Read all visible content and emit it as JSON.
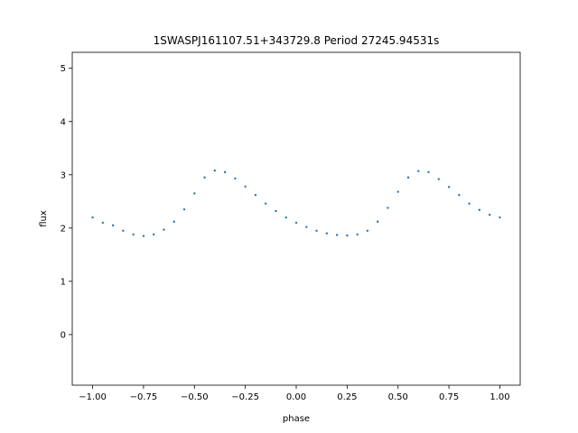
{
  "chart_data": {
    "type": "scatter",
    "title": "1SWASPJ161107.51+343729.8 Period 27245.94531s",
    "xlabel": "phase",
    "ylabel": "flux",
    "xlim": [
      -1.1,
      1.1
    ],
    "ylim": [
      -0.95,
      5.3
    ],
    "grid": false,
    "marker_color": "#1f77b4",
    "xticks": [
      {
        "value": -1.0,
        "label": "−1.00"
      },
      {
        "value": -0.75,
        "label": "−0.75"
      },
      {
        "value": -0.5,
        "label": "−0.50"
      },
      {
        "value": -0.25,
        "label": "−0.25"
      },
      {
        "value": 0.0,
        "label": "0.00"
      },
      {
        "value": 0.25,
        "label": "0.25"
      },
      {
        "value": 0.5,
        "label": "0.50"
      },
      {
        "value": 0.75,
        "label": "0.75"
      },
      {
        "value": 1.0,
        "label": "1.00"
      }
    ],
    "yticks": [
      {
        "value": 0,
        "label": "0"
      },
      {
        "value": 1,
        "label": "1"
      },
      {
        "value": 2,
        "label": "2"
      },
      {
        "value": 3,
        "label": "3"
      },
      {
        "value": 4,
        "label": "4"
      },
      {
        "value": 5,
        "label": "5"
      }
    ],
    "series": [
      {
        "x": [
          -1.0,
          -0.95,
          -0.9,
          -0.85,
          -0.8,
          -0.75,
          -0.7,
          -0.65,
          -0.6,
          -0.55,
          -0.5,
          -0.45,
          -0.4,
          -0.35,
          -0.3,
          -0.25,
          -0.2,
          -0.15,
          -0.1,
          -0.05,
          0.0,
          0.05,
          0.1,
          0.15,
          0.2,
          0.25,
          0.3,
          0.35,
          0.4,
          0.45,
          0.5,
          0.55,
          0.6,
          0.65,
          0.7,
          0.75,
          0.8,
          0.85,
          0.9,
          0.95,
          1.0
        ],
        "y": [
          2.2,
          2.1,
          2.05,
          1.95,
          1.88,
          1.85,
          1.88,
          1.97,
          2.12,
          2.35,
          2.65,
          2.95,
          3.08,
          3.05,
          2.93,
          2.78,
          2.62,
          2.46,
          2.32,
          2.2,
          2.1,
          2.02,
          1.95,
          1.9,
          1.87,
          1.86,
          1.88,
          1.95,
          2.12,
          2.38,
          2.68,
          2.95,
          3.07,
          3.05,
          2.92,
          2.77,
          2.62,
          2.46,
          2.34,
          2.25,
          2.2
        ]
      }
    ]
  }
}
